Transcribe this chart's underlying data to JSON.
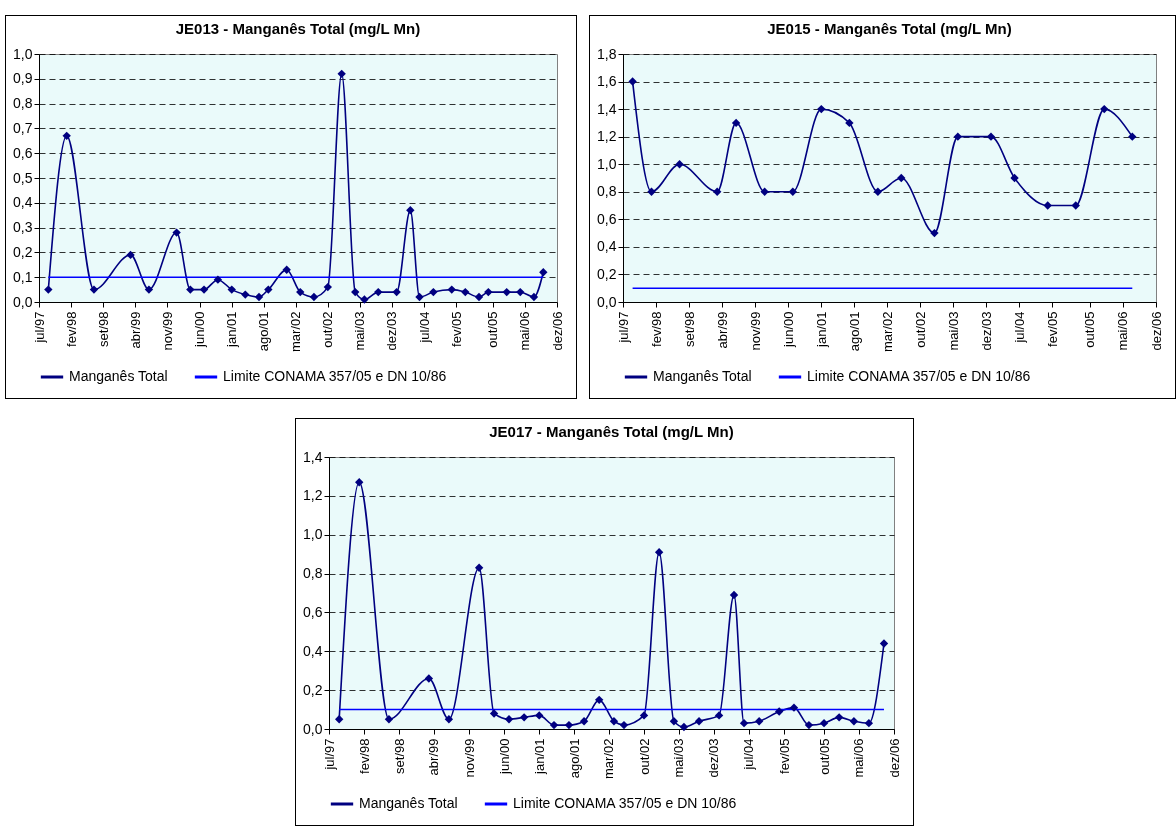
{
  "chart_data": [
    {
      "type": "line",
      "title": "JE013 - Manganês Total (mg/L Mn)",
      "legend": "bottom",
      "grid": "y",
      "marker": "diamond",
      "line_style": "solid",
      "xlim": [
        "1997-07",
        "2006-12"
      ],
      "xticks": [
        {
          "value": "1997-07",
          "label": "jul/97"
        },
        {
          "value": "1998-02",
          "label": "fev/98"
        },
        {
          "value": "1998-09",
          "label": "set/98"
        },
        {
          "value": "1999-04",
          "label": "abr/99"
        },
        {
          "value": "1999-11",
          "label": "nov/99"
        },
        {
          "value": "2000-06",
          "label": "jun/00"
        },
        {
          "value": "2001-01",
          "label": "jan/01"
        },
        {
          "value": "2001-08",
          "label": "ago/01"
        },
        {
          "value": "2002-03",
          "label": "mar/02"
        },
        {
          "value": "2002-10",
          "label": "out/02"
        },
        {
          "value": "2003-05",
          "label": "mai/03"
        },
        {
          "value": "2003-12",
          "label": "dez/03"
        },
        {
          "value": "2004-07",
          "label": "jul/04"
        },
        {
          "value": "2005-02",
          "label": "fev/05"
        },
        {
          "value": "2005-10",
          "label": "out/05"
        },
        {
          "value": "2006-05",
          "label": "mai/06"
        },
        {
          "value": "2006-12",
          "label": "dez/06"
        }
      ],
      "ylim": [
        0,
        1
      ],
      "yticks": [
        {
          "value": 0,
          "label": "0,0"
        },
        {
          "value": 0.1,
          "label": "0,1"
        },
        {
          "value": 0.2,
          "label": "0,2"
        },
        {
          "value": 0.3,
          "label": "0,3"
        },
        {
          "value": 0.4,
          "label": "0,4"
        },
        {
          "value": 0.5,
          "label": "0,5"
        },
        {
          "value": 0.6,
          "label": "0,6"
        },
        {
          "value": 0.7,
          "label": "0,7"
        },
        {
          "value": 0.8,
          "label": "0,8"
        },
        {
          "value": 0.9,
          "label": "0,9"
        },
        {
          "value": 1,
          "label": "1,0"
        }
      ],
      "series": [
        {
          "name": "Manganês Total",
          "color": "#000080",
          "x": [
            "1997-09",
            "1998-01",
            "1998-07",
            "1999-03",
            "1999-07",
            "2000-01",
            "2000-04",
            "2000-07",
            "2000-10",
            "2001-01",
            "2001-04",
            "2001-07",
            "2001-09",
            "2002-01",
            "2002-04",
            "2002-07",
            "2002-10",
            "2003-01",
            "2003-04",
            "2003-06",
            "2003-09",
            "2004-01",
            "2004-04",
            "2004-06",
            "2004-09",
            "2005-01",
            "2005-04",
            "2005-07",
            "2005-09",
            "2006-01",
            "2006-04",
            "2006-07",
            "2006-09"
          ],
          "values": [
            0.05,
            0.67,
            0.05,
            0.19,
            0.05,
            0.28,
            0.05,
            0.05,
            0.09,
            0.05,
            0.03,
            0.02,
            0.05,
            0.13,
            0.04,
            0.02,
            0.06,
            0.92,
            0.04,
            0.01,
            0.04,
            0.04,
            0.37,
            0.02,
            0.04,
            0.05,
            0.04,
            0.02,
            0.04,
            0.04,
            0.04,
            0.02,
            0.12
          ]
        },
        {
          "name": "Limite CONAMA 357/05 e DN 10/86",
          "color": "#0000ff",
          "marker": "none",
          "x": [
            "1997-09",
            "2006-09"
          ],
          "values": [
            0.1,
            0.1
          ]
        }
      ]
    },
    {
      "type": "line",
      "title": "JE015 - Manganês Total (mg/L Mn)",
      "legend": "bottom",
      "grid": "y",
      "marker": "diamond",
      "line_style": "solid",
      "xlim": [
        "1997-07",
        "2006-12"
      ],
      "xticks": [
        {
          "value": "1997-07",
          "label": "jul/97"
        },
        {
          "value": "1998-02",
          "label": "fev/98"
        },
        {
          "value": "1998-09",
          "label": "set/98"
        },
        {
          "value": "1999-04",
          "label": "abr/99"
        },
        {
          "value": "1999-11",
          "label": "nov/99"
        },
        {
          "value": "2000-06",
          "label": "jun/00"
        },
        {
          "value": "2001-01",
          "label": "jan/01"
        },
        {
          "value": "2001-08",
          "label": "ago/01"
        },
        {
          "value": "2002-03",
          "label": "mar/02"
        },
        {
          "value": "2002-10",
          "label": "out/02"
        },
        {
          "value": "2003-05",
          "label": "mai/03"
        },
        {
          "value": "2003-12",
          "label": "dez/03"
        },
        {
          "value": "2004-07",
          "label": "jul/04"
        },
        {
          "value": "2005-02",
          "label": "fev/05"
        },
        {
          "value": "2005-10",
          "label": "out/05"
        },
        {
          "value": "2006-05",
          "label": "mai/06"
        },
        {
          "value": "2006-12",
          "label": "dez/06"
        }
      ],
      "ylim": [
        0,
        1.8
      ],
      "yticks": [
        {
          "value": 0,
          "label": "0,0"
        },
        {
          "value": 0.2,
          "label": "0,2"
        },
        {
          "value": 0.4,
          "label": "0,4"
        },
        {
          "value": 0.6,
          "label": "0,6"
        },
        {
          "value": 0.8,
          "label": "0,8"
        },
        {
          "value": 1,
          "label": "1,0"
        },
        {
          "value": 1.2,
          "label": "1,2"
        },
        {
          "value": 1.4,
          "label": "1,4"
        },
        {
          "value": 1.6,
          "label": "1,6"
        },
        {
          "value": 1.8,
          "label": "1,8"
        }
      ],
      "series": [
        {
          "name": "Manganês Total",
          "color": "#000080",
          "x": [
            "1997-09",
            "1998-01",
            "1998-07",
            "1999-03",
            "1999-07",
            "2000-01",
            "2000-07",
            "2001-01",
            "2001-07",
            "2002-01",
            "2002-06",
            "2003-01",
            "2003-06",
            "2004-01",
            "2004-06",
            "2005-01",
            "2005-07",
            "2006-01",
            "2006-07"
          ],
          "values": [
            1.6,
            0.8,
            1.0,
            0.8,
            1.3,
            0.8,
            0.8,
            1.4,
            1.3,
            0.8,
            0.9,
            0.5,
            1.2,
            1.2,
            0.9,
            0.7,
            0.7,
            1.4,
            1.2
          ]
        },
        {
          "name": "Limite CONAMA 357/05 e DN 10/86",
          "color": "#0000ff",
          "marker": "none",
          "x": [
            "1997-09",
            "2006-07"
          ],
          "values": [
            0.1,
            0.1
          ]
        }
      ]
    },
    {
      "type": "line",
      "title": "JE017 - Manganês Total (mg/L Mn)",
      "legend": "bottom",
      "grid": "y",
      "marker": "diamond",
      "line_style": "solid",
      "xlim": [
        "1997-07",
        "2006-12"
      ],
      "xticks": [
        {
          "value": "1997-07",
          "label": "jul/97"
        },
        {
          "value": "1998-02",
          "label": "fev/98"
        },
        {
          "value": "1998-09",
          "label": "set/98"
        },
        {
          "value": "1999-04",
          "label": "abr/99"
        },
        {
          "value": "1999-11",
          "label": "nov/99"
        },
        {
          "value": "2000-06",
          "label": "jun/00"
        },
        {
          "value": "2001-01",
          "label": "jan/01"
        },
        {
          "value": "2001-08",
          "label": "ago/01"
        },
        {
          "value": "2002-03",
          "label": "mar/02"
        },
        {
          "value": "2002-10",
          "label": "out/02"
        },
        {
          "value": "2003-05",
          "label": "mai/03"
        },
        {
          "value": "2003-12",
          "label": "dez/03"
        },
        {
          "value": "2004-07",
          "label": "jul/04"
        },
        {
          "value": "2005-02",
          "label": "fev/05"
        },
        {
          "value": "2005-10",
          "label": "out/05"
        },
        {
          "value": "2006-05",
          "label": "mai/06"
        },
        {
          "value": "2006-12",
          "label": "dez/06"
        }
      ],
      "ylim": [
        0,
        1.4
      ],
      "yticks": [
        {
          "value": 0,
          "label": "0,0"
        },
        {
          "value": 0.2,
          "label": "0,2"
        },
        {
          "value": 0.4,
          "label": "0,4"
        },
        {
          "value": 0.6,
          "label": "0,6"
        },
        {
          "value": 0.8,
          "label": "0,8"
        },
        {
          "value": 1,
          "label": "1,0"
        },
        {
          "value": 1.2,
          "label": "1,2"
        },
        {
          "value": 1.4,
          "label": "1,4"
        }
      ],
      "series": [
        {
          "name": "Manganês Total",
          "color": "#000080",
          "x": [
            "1997-09",
            "1998-01",
            "1998-07",
            "1999-03",
            "1999-07",
            "2000-01",
            "2000-04",
            "2000-07",
            "2000-10",
            "2001-01",
            "2001-04",
            "2001-07",
            "2001-10",
            "2002-01",
            "2002-04",
            "2002-06",
            "2002-10",
            "2003-01",
            "2003-04",
            "2003-06",
            "2003-09",
            "2004-01",
            "2004-04",
            "2004-06",
            "2004-09",
            "2005-01",
            "2005-04",
            "2005-07",
            "2005-10",
            "2006-01",
            "2006-04",
            "2006-07",
            "2006-10"
          ],
          "values": [
            0.05,
            1.27,
            0.05,
            0.26,
            0.05,
            0.83,
            0.08,
            0.05,
            0.06,
            0.07,
            0.02,
            0.02,
            0.04,
            0.15,
            0.04,
            0.02,
            0.07,
            0.91,
            0.04,
            0.01,
            0.04,
            0.07,
            0.69,
            0.03,
            0.04,
            0.09,
            0.11,
            0.02,
            0.03,
            0.06,
            0.04,
            0.03,
            0.44
          ]
        },
        {
          "name": "Limite CONAMA 357/05 e DN 10/86",
          "color": "#0000ff",
          "marker": "none",
          "x": [
            "1997-09",
            "2006-10"
          ],
          "values": [
            0.1,
            0.1
          ]
        }
      ]
    }
  ]
}
